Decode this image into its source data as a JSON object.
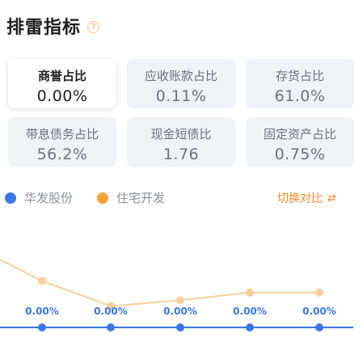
{
  "header": {
    "title": "排雷指标",
    "help_icon": "question-circle-icon"
  },
  "cards": [
    {
      "label": "商誉占比",
      "value": "0.00%",
      "active": true
    },
    {
      "label": "应收账款占比",
      "value": "0.11%",
      "active": false
    },
    {
      "label": "存货占比",
      "value": "61.0%",
      "active": false
    },
    {
      "label": "带息债务占比",
      "value": "56.2%",
      "active": false
    },
    {
      "label": "现金短债比",
      "value": "1.76",
      "active": false
    },
    {
      "label": "固定资产占比",
      "value": "0.75%",
      "active": false
    }
  ],
  "legend": [
    {
      "name": "华发股份",
      "color": "#3a76e8"
    },
    {
      "name": "住宅开发",
      "color": "#f7a23b"
    }
  ],
  "switch_label": "切换对比",
  "switch_icon": "swap-icon",
  "chart_data": {
    "type": "line",
    "series": [
      {
        "name": "华发股份",
        "color": "#3a76e8",
        "values": [
          0,
          0,
          0,
          0,
          0
        ],
        "data_labels": [
          "0.00%",
          "0.00%",
          "0.00%",
          "0.00%",
          "0.00%"
        ]
      },
      {
        "name": "住宅开发",
        "color": "#f8cf9c",
        "values": [
          2.4,
          1.1,
          1.4,
          1.8,
          1.8
        ]
      }
    ],
    "leading_value": 3.5
  }
}
